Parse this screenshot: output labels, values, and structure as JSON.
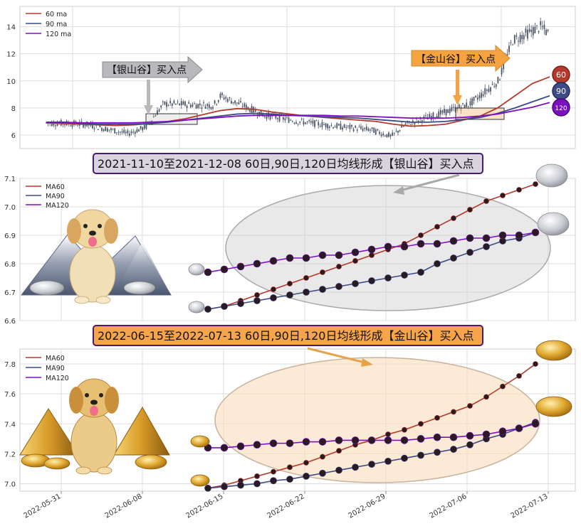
{
  "colors": {
    "ma60": "#b5392c",
    "ma90": "#3d4a85",
    "ma120": "#7b10c0",
    "candle": "#4a5566",
    "silver_banner_bg": "#d8d3dc",
    "gold_banner_bg": "#f6a54a",
    "banner_border": "#4a1a6e"
  },
  "top_chart": {
    "legend": [
      "60 ma",
      "90 ma",
      "120 ma"
    ],
    "y_ticks": [
      "6",
      "8",
      "10",
      "12",
      "14"
    ],
    "silver_callout": "【银山谷】买入点",
    "gold_callout": "【金山谷】买入点",
    "badges": [
      "60",
      "90",
      "120"
    ]
  },
  "silver_banner": "2021-11-10至2021-12-08 60日,90日,120日均线形成【银山谷】买入点",
  "gold_banner": "2022-06-15至2022-07-13 60日,90日,120日均线形成【金山谷】买入点",
  "middle_chart": {
    "legend": [
      "MA60",
      "MA90",
      "MA120"
    ],
    "y_ticks": [
      "6.6",
      "6.7",
      "6.8",
      "6.9",
      "7.0",
      "7.1"
    ]
  },
  "bottom_chart": {
    "legend": [
      "MA60",
      "MA90",
      "MA120"
    ],
    "y_ticks": [
      "7.0",
      "7.2",
      "7.4",
      "7.6",
      "7.8"
    ],
    "x_ticks": [
      "2022-05-31",
      "2022-06-08",
      "2022-06-15",
      "2022-06-22",
      "2022-06-29",
      "2022-07-06",
      "2022-07-13"
    ]
  },
  "chart_data": [
    {
      "type": "line",
      "name": "price with moving averages",
      "ylim": [
        5,
        15.5
      ],
      "series": [
        {
          "name": "60 ma",
          "values": [
            6.9,
            6.85,
            6.8,
            6.75,
            6.7,
            6.75,
            6.85,
            7.0,
            7.2,
            7.5,
            7.8,
            7.95,
            7.9,
            7.7,
            7.55,
            7.4,
            7.3,
            7.2,
            7.1,
            7.0,
            6.8,
            6.65,
            6.7,
            6.8,
            7.1,
            7.4,
            8.0,
            8.9,
            9.8,
            10.3
          ]
        },
        {
          "name": "90 ma",
          "values": [
            6.95,
            6.9,
            6.85,
            6.8,
            6.8,
            6.8,
            6.85,
            6.95,
            7.1,
            7.25,
            7.4,
            7.55,
            7.6,
            7.55,
            7.45,
            7.4,
            7.35,
            7.3,
            7.25,
            7.15,
            7.05,
            6.95,
            6.95,
            7.0,
            7.15,
            7.3,
            7.6,
            8.0,
            8.45,
            8.9
          ]
        },
        {
          "name": "120 ma",
          "values": [
            6.95,
            6.95,
            6.9,
            6.9,
            6.9,
            6.9,
            6.95,
            7.0,
            7.1,
            7.2,
            7.3,
            7.4,
            7.45,
            7.45,
            7.45,
            7.45,
            7.45,
            7.4,
            7.4,
            7.35,
            7.3,
            7.25,
            7.25,
            7.25,
            7.3,
            7.4,
            7.55,
            7.8,
            8.05,
            8.4
          ]
        }
      ]
    },
    {
      "type": "line",
      "name": "silver valley zoom",
      "ylim": [
        6.6,
        7.1
      ],
      "series": [
        {
          "name": "MA60",
          "values": [
            6.64,
            6.65,
            6.67,
            6.69,
            6.71,
            6.73,
            6.75,
            6.77,
            6.79,
            6.81,
            6.83,
            6.85,
            6.87,
            6.9,
            6.93,
            6.96,
            6.99,
            7.02,
            7.04,
            7.06,
            7.08
          ]
        },
        {
          "name": "MA90",
          "values": [
            6.64,
            6.65,
            6.66,
            6.67,
            6.68,
            6.69,
            6.7,
            6.71,
            6.72,
            6.73,
            6.74,
            6.75,
            6.76,
            6.77,
            6.8,
            6.82,
            6.84,
            6.86,
            6.88,
            6.89,
            6.91
          ]
        },
        {
          "name": "MA120",
          "values": [
            6.77,
            6.78,
            6.79,
            6.8,
            6.81,
            6.82,
            6.82,
            6.83,
            6.83,
            6.84,
            6.85,
            6.86,
            6.86,
            6.87,
            6.87,
            6.88,
            6.89,
            6.89,
            6.9,
            6.9,
            6.91
          ]
        }
      ]
    },
    {
      "type": "line",
      "name": "gold valley zoom",
      "x": [
        "2022-06-15",
        "2022-06-16",
        "2022-06-17",
        "2022-06-20",
        "2022-06-21",
        "2022-06-22",
        "2022-06-23",
        "2022-06-24",
        "2022-06-27",
        "2022-06-28",
        "2022-06-29",
        "2022-06-30",
        "2022-07-01",
        "2022-07-04",
        "2022-07-05",
        "2022-07-06",
        "2022-07-07",
        "2022-07-08",
        "2022-07-11",
        "2022-07-12",
        "2022-07-13"
      ],
      "ylim": [
        6.95,
        7.9
      ],
      "series": [
        {
          "name": "MA60",
          "values": [
            6.97,
            6.99,
            7.02,
            7.05,
            7.08,
            7.11,
            7.14,
            7.18,
            7.22,
            7.26,
            7.29,
            7.33,
            7.36,
            7.4,
            7.44,
            7.48,
            7.52,
            7.58,
            7.65,
            7.72,
            7.8
          ]
        },
        {
          "name": "MA90",
          "values": [
            6.97,
            6.98,
            6.99,
            7.0,
            7.02,
            7.03,
            7.05,
            7.07,
            7.09,
            7.11,
            7.13,
            7.15,
            7.17,
            7.19,
            7.21,
            7.23,
            7.26,
            7.3,
            7.33,
            7.37,
            7.41
          ]
        },
        {
          "name": "MA120",
          "values": [
            7.24,
            7.24,
            7.25,
            7.26,
            7.27,
            7.27,
            7.28,
            7.28,
            7.29,
            7.29,
            7.29,
            7.29,
            7.29,
            7.3,
            7.31,
            7.31,
            7.32,
            7.33,
            7.35,
            7.37,
            7.4
          ]
        }
      ]
    }
  ]
}
